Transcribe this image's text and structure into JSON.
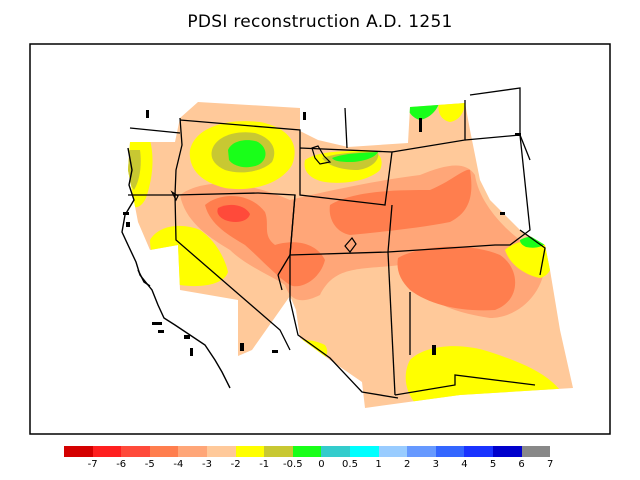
{
  "title": "PDSI reconstruction A.D. 1251",
  "legend": {
    "colors": [
      "#d40000",
      "#ff1f1f",
      "#ff4a3a",
      "#ff7e4e",
      "#ffa678",
      "#ffc99a",
      "#ffff00",
      "#c8c832",
      "#19ff19",
      "#33cccc",
      "#00ffff",
      "#99ccff",
      "#6699ff",
      "#3366ff",
      "#1a33ff",
      "#0000cc",
      "#888888"
    ],
    "ticks": [
      "-7",
      "-6",
      "-5",
      "-4",
      "-3",
      "-2",
      "-1",
      "-0.5",
      "0",
      "0.5",
      "1",
      "2",
      "3",
      "4",
      "5",
      "6",
      "7"
    ]
  },
  "map": {
    "region": "western United States",
    "dominant_class": "-3 to -2",
    "color_scale": "diverging red-yellow-green-blue"
  }
}
